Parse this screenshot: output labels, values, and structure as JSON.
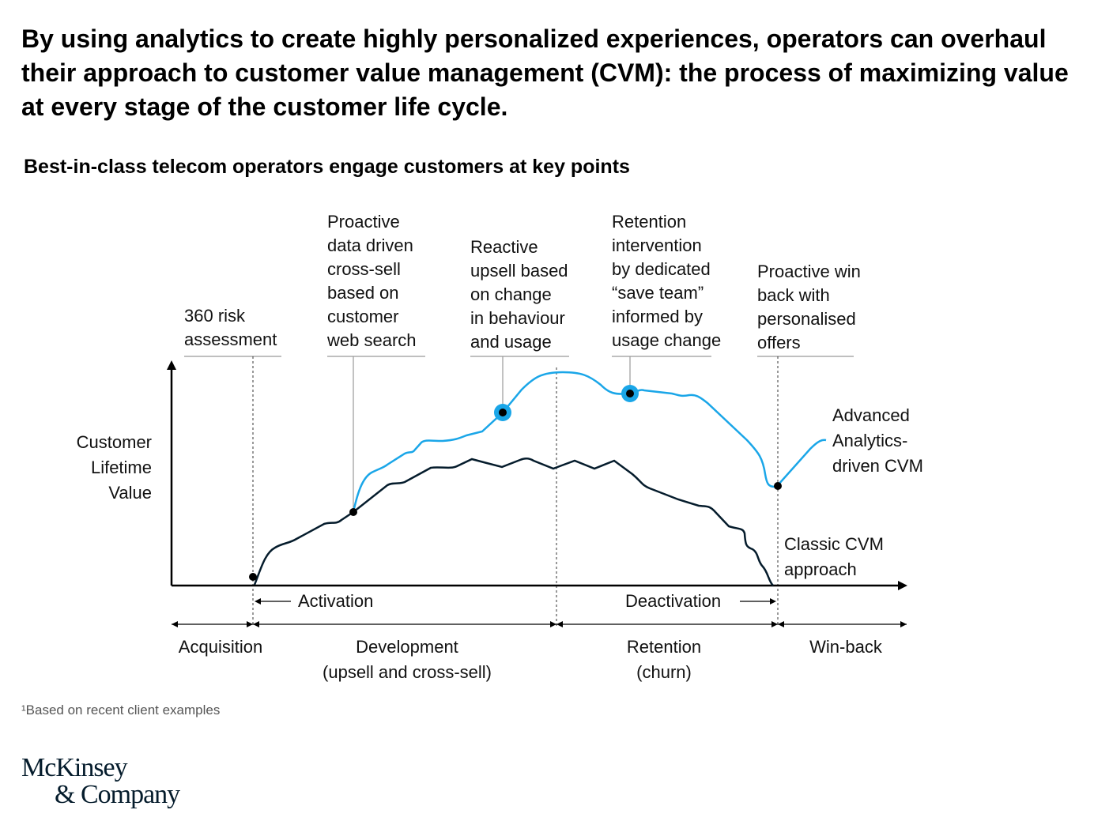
{
  "title": "By using analytics to create highly personalized experiences, operators can overhaul their approach to customer value management (CVM): the process of maximizing value at every stage of the customer life cycle.",
  "subtitle": "Best-in-class telecom operators engage customers at key points",
  "y_axis_label": "Customer\nLifetime\nValue",
  "annotations": [
    "360 risk\nassessment",
    "Proactive\ndata driven\ncross-sell\nbased on\ncustomer\nweb search",
    "Reactive\nupsell based\non change\nin behaviour\nand usage",
    "Retention\nintervention\nby dedicated\n“save team”\ninformed by\nusage change",
    "Proactive win\nback with\npersonalised\noffers"
  ],
  "series": [
    {
      "name": "Advanced\nAnalytics-\ndriven CVM",
      "color": "#1aa6e8"
    },
    {
      "name": "Classic CVM\napproach",
      "color": "#051c2c"
    }
  ],
  "events": {
    "activation": "Activation",
    "deactivation": "Deactivation"
  },
  "stages": [
    {
      "label": "Acquisition"
    },
    {
      "label": "Development\n(upsell and cross-sell)"
    },
    {
      "label": "Retention\n(churn)"
    },
    {
      "label": "Win-back"
    }
  ],
  "footnote": "¹Based on recent client examples",
  "logo": "McKinsey\n& Company"
}
